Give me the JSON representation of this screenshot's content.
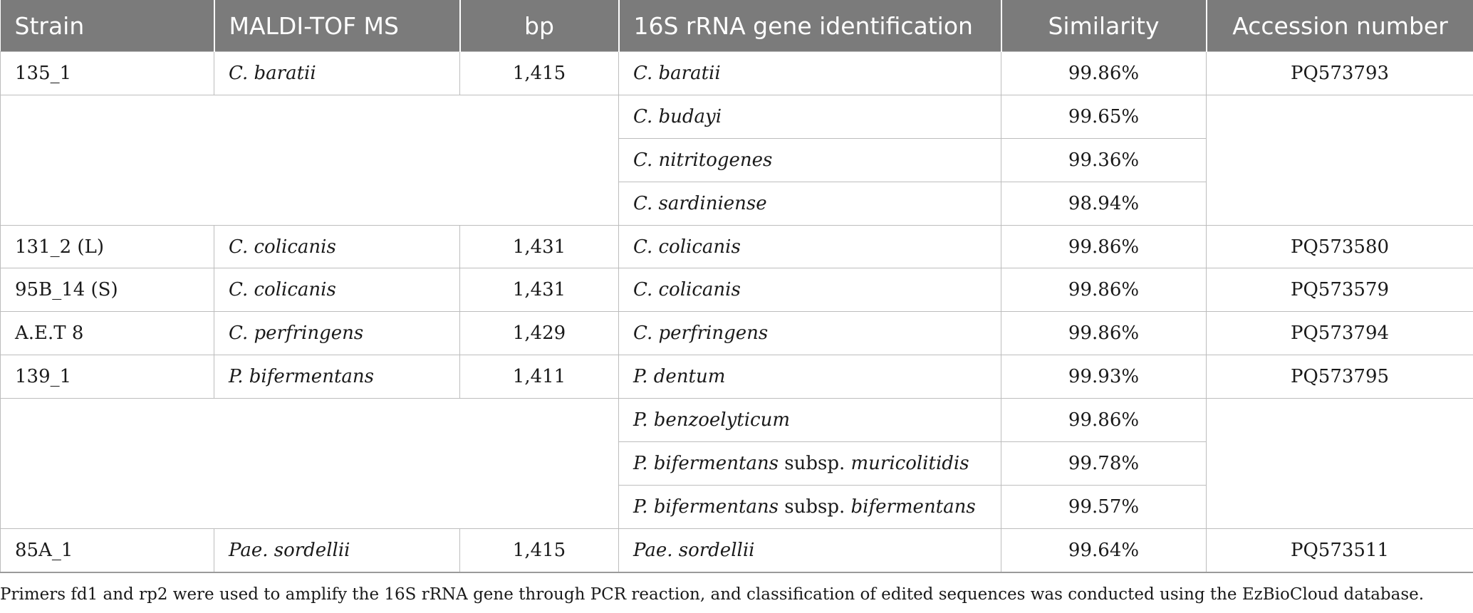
{
  "table": {
    "headers": [
      "Strain",
      "MALDI-TOF MS",
      "bp",
      "16S rRNA gene identification",
      "Similarity",
      "Accession number"
    ],
    "rows": [
      {
        "strain": "135_1",
        "maldi": "C. baratii",
        "bp": "1,415",
        "id": "C. baratii",
        "id_suffix": "",
        "similarity": "99.86%",
        "accession": "PQ573793"
      },
      {
        "strain": "",
        "maldi": "",
        "bp": "",
        "id": "C. budayi",
        "id_suffix": "",
        "similarity": "99.65%",
        "accession": ""
      },
      {
        "strain": "",
        "maldi": "",
        "bp": "",
        "id": "C. nitritogenes",
        "id_suffix": "",
        "similarity": "99.36%",
        "accession": ""
      },
      {
        "strain": "",
        "maldi": "",
        "bp": "",
        "id": "C. sardiniense",
        "id_suffix": "",
        "similarity": "98.94%",
        "accession": ""
      },
      {
        "strain": "131_2 (L)",
        "maldi": "C. colicanis",
        "bp": "1,431",
        "id": "C. colicanis",
        "id_suffix": "",
        "similarity": "99.86%",
        "accession": "PQ573580"
      },
      {
        "strain": "95B_14 (S)",
        "maldi": "C. colicanis",
        "bp": "1,431",
        "id": "C. colicanis",
        "id_suffix": "",
        "similarity": "99.86%",
        "accession": "PQ573579"
      },
      {
        "strain": "A.E.T 8",
        "maldi": "C. perfringens",
        "bp": "1,429",
        "id": "C. perfringens",
        "id_suffix": "",
        "similarity": "99.86%",
        "accession": "PQ573794"
      },
      {
        "strain": "139_1",
        "maldi": "P. bifermentans",
        "bp": "1,411",
        "id": "P. dentum",
        "id_suffix": "",
        "similarity": "99.93%",
        "accession": "PQ573795"
      },
      {
        "strain": "",
        "maldi": "",
        "bp": "",
        "id": "P. benzoelyticum",
        "id_suffix": "",
        "similarity": "99.86%",
        "accession": ""
      },
      {
        "strain": "",
        "maldi": "",
        "bp": "",
        "id": "P. bifermentans",
        "id_mid": " subsp. ",
        "id_suffix": "muricolitidis",
        "similarity": "99.78%",
        "accession": ""
      },
      {
        "strain": "",
        "maldi": "",
        "bp": "",
        "id": "P. bifermentans",
        "id_mid": " subsp. ",
        "id_suffix": "bifermentans",
        "similarity": "99.57%",
        "accession": ""
      },
      {
        "strain": "85A_1",
        "maldi": "Pae. sordellii",
        "bp": "1,415",
        "id": "Pae. sordellii",
        "id_suffix": "",
        "similarity": "99.64%",
        "accession": "PQ573511"
      }
    ]
  },
  "footnote": "Primers fd1 and rp2 were used to amplify the 16S rRNA gene through PCR reaction, and classification of edited sequences was conducted using the EzBioCloud database."
}
